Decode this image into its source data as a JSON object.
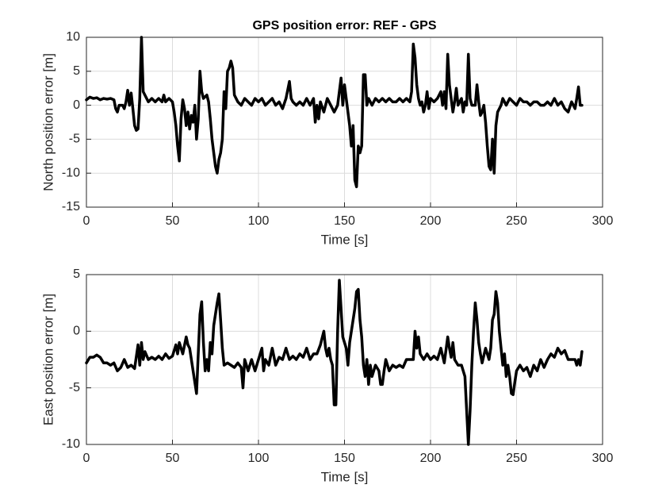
{
  "chart_data": [
    {
      "type": "line",
      "title": "GPS position error: REF - GPS",
      "xlabel": "Time [s]",
      "ylabel": "North position error [m]",
      "color": "#000000",
      "grid": true,
      "xlim": [
        0,
        300
      ],
      "xticks": [
        0,
        50,
        100,
        150,
        200,
        250,
        300
      ],
      "ylim": [
        -15,
        10
      ],
      "yticks": [
        -15,
        -10,
        -5,
        0,
        5,
        10
      ],
      "x": [
        0,
        2,
        4,
        6,
        8,
        10,
        12,
        14,
        16,
        17,
        18,
        19,
        21,
        22,
        23,
        24,
        25,
        26,
        27,
        28,
        29,
        30,
        31,
        32,
        33,
        35,
        36,
        38,
        40,
        42,
        44,
        45,
        46,
        48,
        50,
        51,
        52,
        53,
        54,
        55,
        56,
        57,
        58,
        59,
        60,
        61,
        62,
        63,
        64,
        65,
        66,
        67,
        68,
        70,
        71,
        72,
        73,
        74,
        75,
        76,
        77,
        78,
        79,
        80,
        81,
        82,
        83,
        84,
        85,
        86,
        88,
        90,
        92,
        94,
        96,
        98,
        100,
        102,
        104,
        106,
        108,
        110,
        112,
        114,
        116,
        118,
        119,
        120,
        122,
        124,
        126,
        128,
        130,
        132,
        133,
        134,
        135,
        136,
        138,
        140,
        142,
        144,
        146,
        147,
        148,
        149,
        150,
        151,
        152,
        153,
        154,
        155,
        156,
        157,
        158,
        159,
        160,
        161,
        162,
        163,
        164,
        166,
        168,
        170,
        172,
        174,
        176,
        178,
        180,
        182,
        184,
        186,
        188,
        189,
        190,
        191,
        192,
        193,
        194,
        195,
        196,
        197,
        198,
        199,
        200,
        202,
        204,
        206,
        207,
        208,
        209,
        210,
        211,
        212,
        213,
        214,
        215,
        216,
        218,
        219,
        220,
        221,
        222,
        223,
        224,
        226,
        227,
        228,
        229,
        230,
        231,
        232,
        233,
        234,
        235,
        236,
        237,
        238,
        239,
        240,
        241,
        242,
        244,
        246,
        248,
        250,
        252,
        254,
        256,
        258,
        260,
        262,
        264,
        266,
        268,
        270,
        272,
        274,
        276,
        278,
        280,
        282,
        284,
        285,
        286,
        287,
        288
      ],
      "values": [
        0.8,
        1.2,
        1.0,
        1.1,
        0.8,
        1.0,
        0.9,
        1.0,
        0.8,
        -0.5,
        -1,
        0,
        0,
        -0.5,
        0.5,
        2.2,
        0,
        1.8,
        -0.5,
        -3,
        -3.7,
        -3.5,
        1,
        10,
        2,
        1,
        0.5,
        1,
        0.5,
        1,
        0.5,
        1.5,
        0.5,
        1,
        0.5,
        -1,
        -3,
        -6,
        -8.2,
        -2,
        0.8,
        -0.5,
        -3,
        -1,
        -3.5,
        -1.5,
        -2.5,
        0,
        -5,
        -2,
        5,
        2,
        1,
        1.5,
        0.5,
        -2,
        -5,
        -7,
        -9,
        -10,
        -8,
        -7,
        -5,
        2,
        -0.5,
        5,
        5.5,
        6.5,
        5.5,
        1.5,
        0.5,
        0,
        1,
        0.5,
        0,
        1,
        0.5,
        1,
        0,
        0.5,
        1,
        0,
        0.5,
        -0.5,
        1,
        3.5,
        1,
        0.5,
        0,
        0.5,
        0,
        1,
        0,
        1,
        -2.5,
        0,
        -2,
        0.5,
        -1,
        1,
        0,
        -1,
        0,
        2,
        4,
        0,
        3,
        1,
        -1,
        -3,
        -6,
        -3,
        -11,
        -12,
        -6,
        -7,
        -6,
        4.5,
        4.5,
        0,
        1,
        0,
        1,
        0.5,
        1,
        0.5,
        1,
        0.5,
        0.5,
        1,
        0.5,
        1,
        0.5,
        2,
        9,
        7,
        3,
        1,
        0,
        0.5,
        -1,
        0,
        2,
        -0.5,
        1,
        0.5,
        1,
        2,
        0,
        2,
        -0.5,
        7.5,
        3,
        1,
        -1,
        0.5,
        2.5,
        0,
        1,
        -1,
        0.5,
        0,
        7.5,
        1,
        0,
        0,
        3,
        0.5,
        -1.5,
        -1,
        0,
        -2.5,
        -6,
        -9,
        -9.5,
        -5,
        -10,
        -3,
        -1,
        -0.5,
        0,
        1,
        0,
        1,
        0.5,
        0,
        1,
        0.5,
        0.5,
        0,
        0.5,
        0.5,
        0,
        0,
        0.5,
        0,
        1,
        0,
        0.5,
        -0.5,
        -1,
        0.5,
        -0.5,
        1,
        2.7,
        0,
        0
      ]
    },
    {
      "type": "line",
      "xlabel": "Time [s]",
      "ylabel": "East position error [m]",
      "color": "#000000",
      "grid": true,
      "xlim": [
        0,
        300
      ],
      "xticks": [
        0,
        50,
        100,
        150,
        200,
        250,
        300
      ],
      "ylim": [
        -10,
        5
      ],
      "yticks": [
        -10,
        -5,
        0,
        5
      ],
      "x": [
        0,
        2,
        4,
        6,
        8,
        10,
        12,
        14,
        16,
        18,
        20,
        22,
        24,
        26,
        28,
        30,
        31,
        32,
        33,
        34,
        36,
        38,
        40,
        42,
        44,
        46,
        48,
        50,
        52,
        53,
        54,
        56,
        58,
        59,
        60,
        62,
        63,
        64,
        65,
        66,
        67,
        68,
        69,
        70,
        71,
        72,
        73,
        74,
        75,
        76,
        77,
        78,
        79,
        80,
        82,
        84,
        86,
        88,
        90,
        91,
        92,
        94,
        96,
        98,
        100,
        102,
        103,
        104,
        106,
        108,
        110,
        112,
        114,
        116,
        118,
        120,
        122,
        124,
        126,
        128,
        130,
        132,
        134,
        136,
        138,
        139,
        140,
        141,
        142,
        143,
        144,
        145,
        146,
        147,
        148,
        149,
        150,
        151,
        152,
        153,
        154,
        156,
        157,
        158,
        159,
        160,
        161,
        162,
        163,
        164,
        165,
        166,
        168,
        170,
        171,
        172,
        173,
        174,
        176,
        178,
        180,
        182,
        184,
        186,
        188,
        190,
        191,
        192,
        193,
        194,
        196,
        198,
        200,
        202,
        204,
        206,
        208,
        210,
        211,
        212,
        213,
        214,
        216,
        218,
        220,
        221,
        222,
        223,
        224,
        225,
        226,
        227,
        228,
        229,
        230,
        232,
        234,
        235,
        236,
        237,
        238,
        239,
        240,
        241,
        242,
        243,
        244,
        245,
        246,
        247,
        248,
        249,
        250,
        252,
        254,
        256,
        258,
        260,
        262,
        264,
        266,
        268,
        270,
        272,
        274,
        276,
        278,
        280,
        282,
        284,
        285,
        286,
        287,
        288
      ],
      "values": [
        -2.8,
        -2.3,
        -2.3,
        -2.1,
        -2.3,
        -2.8,
        -2.8,
        -3,
        -2.8,
        -3.5,
        -3.2,
        -2.5,
        -3.2,
        -3,
        -3.3,
        -1.2,
        -3,
        -1,
        -2.5,
        -1.8,
        -2.5,
        -2.3,
        -2.5,
        -2.2,
        -2.5,
        -2,
        -2.4,
        -2.2,
        -1.2,
        -2,
        -1,
        -2,
        -0.5,
        -1.2,
        -1.5,
        -3.5,
        -4.5,
        -5.5,
        -2,
        1.5,
        2.6,
        -1,
        -3.5,
        -2.5,
        -3.5,
        -1,
        -2,
        0.5,
        1.5,
        2.5,
        3.3,
        1,
        -1.5,
        -3,
        -2.8,
        -3,
        -3.2,
        -2.8,
        -3.2,
        -5,
        -2.5,
        -3.5,
        -2.5,
        -3.5,
        -2.5,
        -1.5,
        -3.5,
        -2.5,
        -3,
        -1.5,
        -3,
        -2.3,
        -2.5,
        -1.5,
        -2.5,
        -2.2,
        -2.5,
        -2,
        -2.3,
        -1.5,
        -2.5,
        -2,
        -2,
        -1.2,
        0,
        -1.5,
        -2.2,
        -1.5,
        -2.5,
        -3,
        -6.5,
        -6.5,
        0,
        4.5,
        2,
        -0.5,
        -1,
        -1.5,
        -3,
        -1,
        0,
        2,
        3.5,
        3.7,
        1,
        -0.5,
        -3,
        -4,
        -2.5,
        -4.7,
        -3,
        -4,
        -3,
        -3.5,
        -4.7,
        -4.7,
        -3.5,
        -2.5,
        -3.5,
        -3,
        -3.2,
        -3,
        -3.2,
        -2.5,
        -2.5,
        -2.5,
        0,
        -1.5,
        -0.5,
        -2,
        -2.5,
        -2,
        -2.5,
        -2.2,
        -2.5,
        -1.5,
        -2.8,
        -0.5,
        -1.5,
        -2.3,
        -1,
        -2.5,
        -3,
        -3,
        -4,
        -7,
        -10,
        -7,
        -3,
        0,
        2.5,
        1,
        -1,
        -2,
        -2.8,
        -1.5,
        -2.5,
        -1.5,
        1,
        1.5,
        3.5,
        2.5,
        0,
        -1.5,
        -3,
        -2,
        -4,
        -3,
        -4,
        -5.5,
        -5.6,
        -4.5,
        -3.5,
        -3,
        -3.5,
        -3.2,
        -4,
        -3,
        -3.5,
        -2.5,
        -3.2,
        -2.5,
        -2,
        -2.3,
        -1.5,
        -2,
        -1.7,
        -2.5,
        -2.5,
        -2.5,
        -3,
        -2.5,
        -3,
        -1.8
      ]
    }
  ]
}
